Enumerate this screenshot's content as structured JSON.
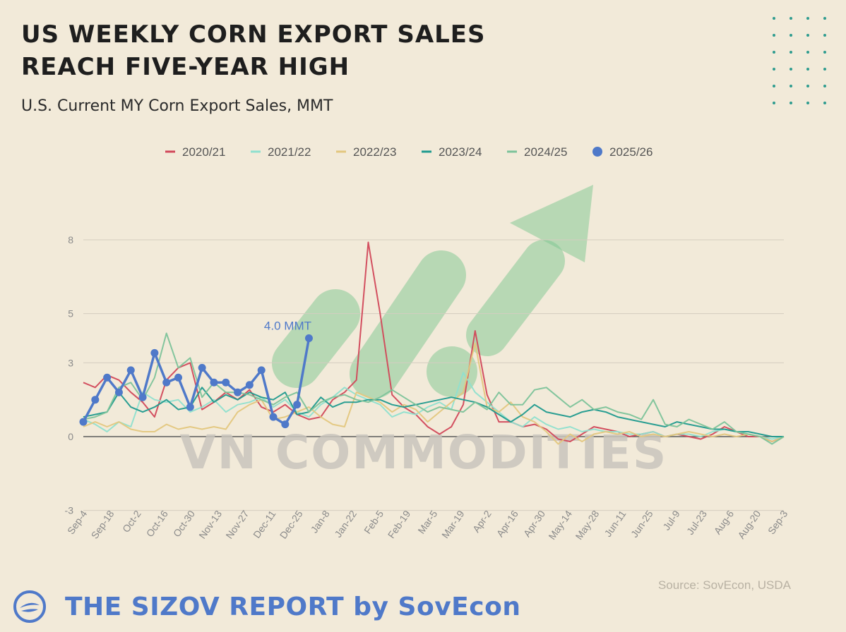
{
  "title_line1": "US WEEKLY CORN EXPORT SALES",
  "title_line2": "REACH FIVE-YEAR HIGH",
  "subtitle": "U.S. Current MY Corn Export Sales, MMT",
  "watermark": "VN COMMODITIES",
  "source": "Source: SovEcon, USDA",
  "brand": "THE SIZOV REPORT by SovEcon",
  "chart_data": {
    "type": "line",
    "ylim": [
      -3,
      8
    ],
    "y_ticks": [
      -3,
      0,
      3,
      5,
      8
    ],
    "grid": true,
    "legend_position": "top",
    "x_labels": [
      "Sep-4",
      "Sep-18",
      "Oct-2",
      "Oct-16",
      "Oct-30",
      "Nov-13",
      "Nov-27",
      "Dec-11",
      "Dec-25",
      "Jan-8",
      "Jan-22",
      "Feb-5",
      "Feb-19",
      "Mar-5",
      "Mar-19",
      "Apr-2",
      "Apr-16",
      "Apr-30",
      "May-14",
      "May-28",
      "Jun-11",
      "Jun-25",
      "Jul-9",
      "Jul-23",
      "Aug-6",
      "Aug-20",
      "Sep-3"
    ],
    "annotation": {
      "text": "4.0 MMT",
      "series": "2025/26",
      "week": 19,
      "value": 4.0
    },
    "series": [
      {
        "name": "2020/21",
        "color": "#d1485a",
        "values": [
          2.2,
          2.0,
          2.5,
          2.3,
          1.8,
          1.4,
          0.8,
          2.3,
          2.8,
          3.0,
          1.1,
          1.4,
          1.8,
          1.5,
          1.9,
          1.2,
          1.0,
          1.3,
          0.9,
          0.7,
          0.8,
          1.5,
          1.8,
          2.3,
          7.9,
          5.0,
          1.7,
          1.2,
          0.9,
          0.4,
          0.1,
          0.4,
          1.3,
          4.3,
          1.7,
          0.6,
          0.6,
          0.4,
          0.5,
          0.3,
          -0.1,
          -0.2,
          0.1,
          0.4,
          0.3,
          0.2,
          0.0,
          0.1,
          0.2,
          0.0,
          0.1,
          0.0,
          -0.1,
          0.1,
          0.4,
          0.2,
          0.0,
          0.0,
          -0.2,
          0.0
        ]
      },
      {
        "name": "2021/22",
        "color": "#8fe0cf",
        "values": [
          0.7,
          0.5,
          0.2,
          0.6,
          0.4,
          1.8,
          1.5,
          1.4,
          1.5,
          1.0,
          1.2,
          1.5,
          1.0,
          1.3,
          1.4,
          1.6,
          1.2,
          1.5,
          1.0,
          0.8,
          1.3,
          1.6,
          2.0,
          1.7,
          1.5,
          1.3,
          0.8,
          1.0,
          0.9,
          1.2,
          1.4,
          1.1,
          2.6,
          1.8,
          1.4,
          1.0,
          0.6,
          0.4,
          0.8,
          0.5,
          0.3,
          0.4,
          0.2,
          0.3,
          0.2,
          0.2,
          0.1,
          0.1,
          0.2,
          0.0,
          0.1,
          0.1,
          0.0,
          0.2,
          0.3,
          0.2,
          0.1,
          0.0,
          -0.1,
          0.0
        ]
      },
      {
        "name": "2022/23",
        "color": "#e3c77e",
        "values": [
          0.4,
          0.6,
          0.4,
          0.6,
          0.3,
          0.2,
          0.2,
          0.5,
          0.3,
          0.4,
          0.3,
          0.4,
          0.3,
          1.0,
          1.3,
          1.5,
          0.7,
          0.8,
          1.0,
          1.2,
          0.8,
          0.5,
          0.4,
          1.8,
          1.6,
          1.4,
          1.0,
          1.3,
          1.1,
          0.6,
          1.0,
          1.4,
          1.8,
          3.8,
          1.2,
          1.0,
          1.4,
          0.8,
          0.6,
          0.2,
          -0.3,
          0.1,
          -0.2,
          0.1,
          0.2,
          0.1,
          0.2,
          0.0,
          0.1,
          0.0,
          0.1,
          0.2,
          0.1,
          0.0,
          0.1,
          0.0,
          0.1,
          0.0,
          -0.2,
          0.0
        ]
      },
      {
        "name": "2023/24",
        "color": "#1f9a8e",
        "values": [
          0.8,
          0.9,
          1.0,
          1.8,
          1.2,
          1.0,
          1.2,
          1.5,
          1.1,
          1.2,
          2.0,
          1.4,
          1.7,
          1.5,
          1.8,
          1.6,
          1.5,
          1.8,
          0.9,
          1.0,
          1.6,
          1.2,
          1.4,
          1.4,
          1.5,
          1.5,
          1.3,
          1.2,
          1.3,
          1.4,
          1.5,
          1.6,
          1.5,
          1.4,
          1.2,
          0.9,
          0.6,
          0.9,
          1.3,
          1.0,
          0.9,
          0.8,
          1.0,
          1.1,
          1.0,
          0.8,
          0.7,
          0.6,
          0.5,
          0.4,
          0.6,
          0.5,
          0.4,
          0.3,
          0.3,
          0.2,
          0.2,
          0.1,
          0.0,
          0.0
        ]
      },
      {
        "name": "2024/25",
        "color": "#7cc39a",
        "values": [
          0.7,
          0.8,
          1.0,
          2.0,
          2.2,
          1.5,
          2.4,
          4.2,
          2.8,
          3.2,
          1.6,
          2.2,
          1.8,
          1.8,
          1.7,
          1.5,
          1.3,
          1.6,
          1.8,
          1.0,
          1.4,
          1.6,
          1.7,
          1.5,
          1.4,
          1.6,
          1.9,
          1.6,
          1.3,
          1.0,
          1.2,
          1.1,
          1.0,
          1.4,
          1.1,
          1.8,
          1.3,
          1.3,
          1.9,
          2.0,
          1.6,
          1.2,
          1.5,
          1.1,
          1.2,
          1.0,
          0.9,
          0.7,
          1.5,
          0.5,
          0.4,
          0.7,
          0.5,
          0.3,
          0.6,
          0.2,
          0.1,
          0.0,
          -0.3,
          0.0
        ]
      },
      {
        "name": "2025/26",
        "color": "#4f79c9",
        "values": [
          0.6,
          1.5,
          2.4,
          1.8,
          2.7,
          1.6,
          3.4,
          2.2,
          2.4,
          1.2,
          2.8,
          2.2,
          2.2,
          1.8,
          2.1,
          2.7,
          0.8,
          0.5,
          1.3,
          4.0
        ]
      }
    ]
  }
}
